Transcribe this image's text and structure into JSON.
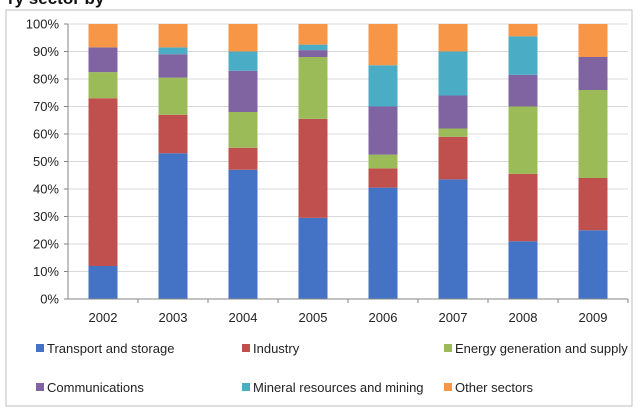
{
  "title": "ry sector by",
  "chart_data": {
    "type": "bar",
    "stacked": true,
    "percent": true,
    "categories": [
      "2002",
      "2003",
      "2004",
      "2005",
      "2006",
      "2007",
      "2008",
      "2009"
    ],
    "ylim": [
      0,
      100
    ],
    "yticks": [
      "0%",
      "10%",
      "20%",
      "30%",
      "40%",
      "50%",
      "60%",
      "70%",
      "80%",
      "90%",
      "100%"
    ],
    "xlabel": "",
    "ylabel": "",
    "grid": true,
    "legend_position": "bottom",
    "series": [
      {
        "name": "Transport and storage",
        "color": "#4472C4",
        "values": [
          12,
          53,
          47,
          29.5,
          40.5,
          43.5,
          21,
          25
        ]
      },
      {
        "name": "Industry",
        "color": "#C0504D",
        "values": [
          61,
          14,
          8,
          36,
          7,
          15.5,
          24.5,
          19
        ]
      },
      {
        "name": "Energy generation and supply",
        "color": "#9BBB59",
        "values": [
          9.5,
          13.5,
          13,
          22.5,
          5,
          3,
          24.5,
          32
        ]
      },
      {
        "name": "Communications",
        "color": "#8064A2",
        "values": [
          9,
          8.5,
          15,
          2.5,
          17.5,
          12,
          11.5,
          12
        ]
      },
      {
        "name": "Mineral resources and mining",
        "color": "#4BACC6",
        "values": [
          0,
          2.5,
          7,
          2,
          15,
          16,
          14,
          0
        ]
      },
      {
        "name": "Other sectors",
        "color": "#F79646",
        "values": [
          8.5,
          8.5,
          10,
          7.5,
          15,
          10,
          4.5,
          12
        ]
      }
    ]
  }
}
